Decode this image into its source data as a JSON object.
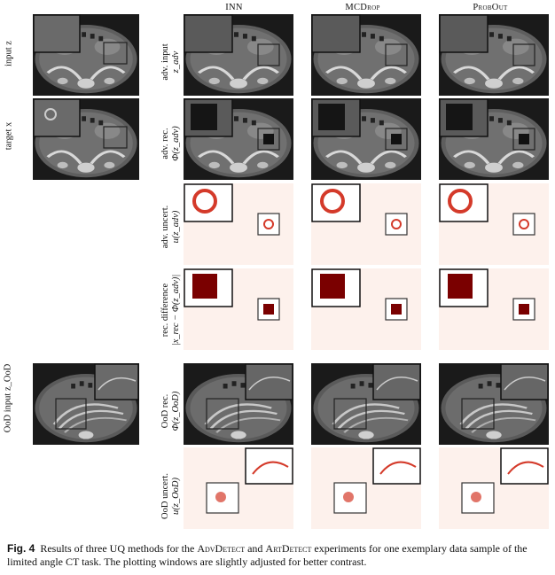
{
  "column_headers": [
    "INN",
    "MCDrop",
    "ProbOut"
  ],
  "row_labels": {
    "input_z": "input z",
    "target_x": "target x",
    "adv_input": "adv. input",
    "adv_input_sym": "z_adv",
    "adv_rec": "adv. rec.",
    "adv_rec_sym": "Φ(z_adv)",
    "adv_uncert": "adv. uncert.",
    "adv_uncert_sym": "u(z_adv)",
    "rec_difference": "rec. difference",
    "rec_difference_sym": "|x_rec − Φ(z_adv)|",
    "ood_input": "OoD input z_OoD",
    "ood_rec": "OoD rec.",
    "ood_rec_sym": "Φ(z_OoD)",
    "ood_uncert": "OoD uncert.",
    "ood_uncert_sym": "u(z_OoD)"
  },
  "caption": {
    "fig_label": "Fig. 4",
    "text_1": "Results of three UQ methods for the",
    "advdetect": "AdvDetect",
    "text_2": "and",
    "artdetect": "ArtDetect",
    "text_3": "experiments for one exemplary data sample of the limited angle CT task. The plotting windows are slightly adjusted for better contrast."
  },
  "colors": {
    "ct_background": "#1a1a1a",
    "uncert_background": "#fdf1ec",
    "uncert_dark": "#7a0000",
    "uncert_mid": "#d43a2a"
  }
}
